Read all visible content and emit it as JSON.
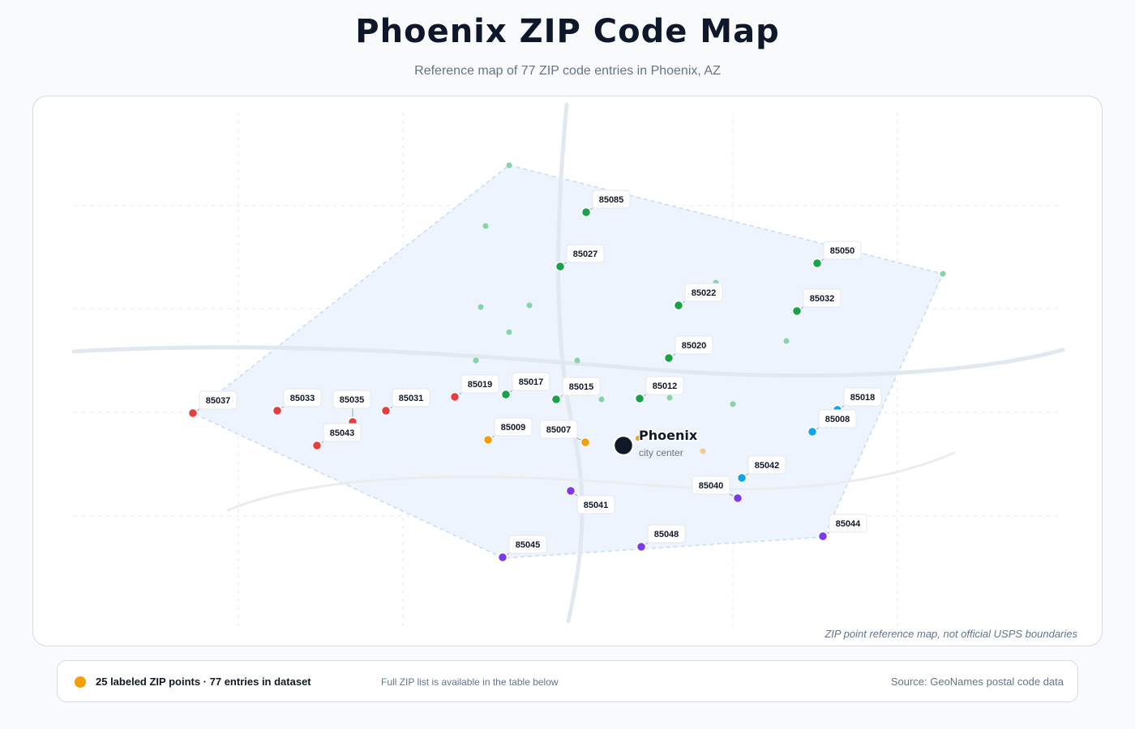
{
  "page": {
    "title": "Phoenix ZIP Code Map",
    "subtitle": "Reference map of 77 ZIP code entries in Phoenix, AZ"
  },
  "map": {
    "disclaimer": "ZIP point reference map, not official USPS boundaries",
    "city": {
      "name": "Phoenix",
      "subtitle": "city center"
    },
    "colors": {
      "west": "#e53e3e",
      "north": "#16a34a",
      "central": "#f59e0b",
      "east": "#0ea5e9",
      "south": "#7c3aed",
      "minor_point": "#86d3a6",
      "minor_point_central": "#f6c98a",
      "boundary_fill": "#eef4fd",
      "boundary_stroke": "#c7dbf5",
      "road": "#e2e8f0"
    },
    "labeled_zips": [
      {
        "zip": "85085",
        "group": "north"
      },
      {
        "zip": "85027",
        "group": "north"
      },
      {
        "zip": "85050",
        "group": "north"
      },
      {
        "zip": "85022",
        "group": "north"
      },
      {
        "zip": "85032",
        "group": "north"
      },
      {
        "zip": "85020",
        "group": "north"
      },
      {
        "zip": "85017",
        "group": "north"
      },
      {
        "zip": "85015",
        "group": "north"
      },
      {
        "zip": "85012",
        "group": "north"
      },
      {
        "zip": "85037",
        "group": "west"
      },
      {
        "zip": "85033",
        "group": "west"
      },
      {
        "zip": "85035",
        "group": "west"
      },
      {
        "zip": "85031",
        "group": "west"
      },
      {
        "zip": "85043",
        "group": "west"
      },
      {
        "zip": "85019",
        "group": "west"
      },
      {
        "zip": "85009",
        "group": "central"
      },
      {
        "zip": "85007",
        "group": "central"
      },
      {
        "zip": "85018",
        "group": "east"
      },
      {
        "zip": "85008",
        "group": "east"
      },
      {
        "zip": "85042",
        "group": "east"
      },
      {
        "zip": "85040",
        "group": "south"
      },
      {
        "zip": "85041",
        "group": "south"
      },
      {
        "zip": "85045",
        "group": "south"
      },
      {
        "zip": "85048",
        "group": "south"
      },
      {
        "zip": "85044",
        "group": "south"
      }
    ]
  },
  "footer": {
    "count_text": "25 labeled ZIP points · 77 entries in dataset",
    "note": "Full ZIP list is available in the table below",
    "source": "Source: GeoNames postal code data"
  }
}
